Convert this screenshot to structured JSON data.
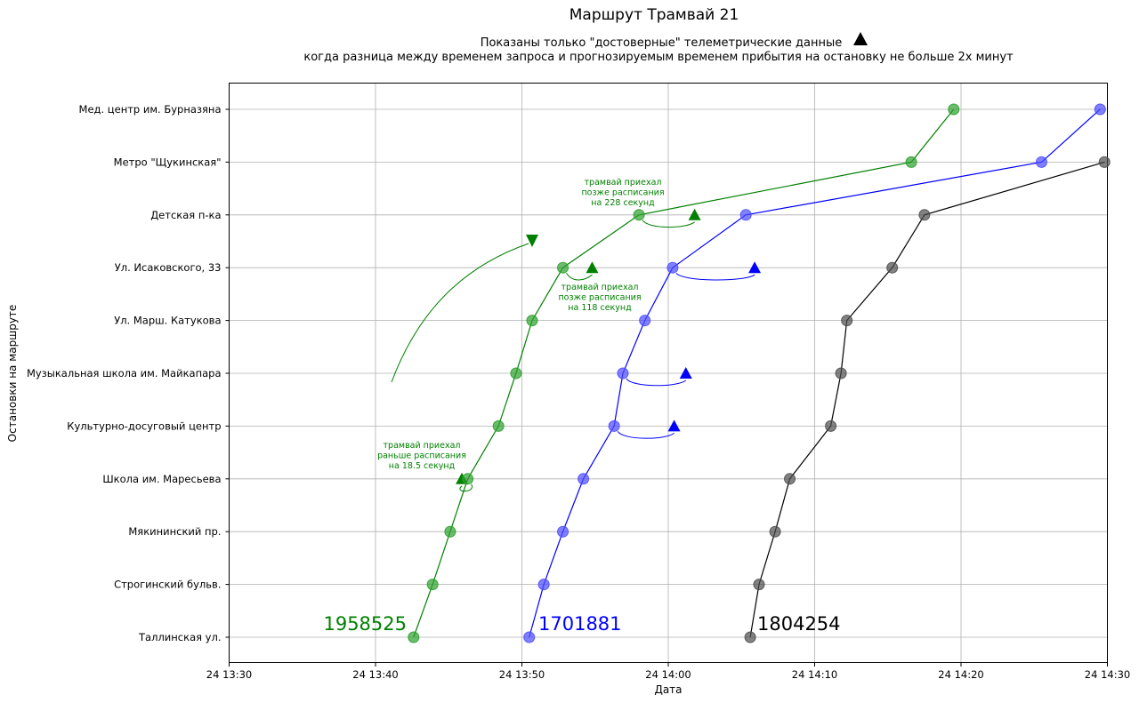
{
  "chart_data": {
    "type": "line",
    "title": "Маршрут Трамвай 21",
    "subtitle_lines": [
      "Показаны только \"достоверные\" телеметрические данные",
      "когда разница между временем запроса и прогнозируемым временем прибытия на остановку не больше 2х минут"
    ],
    "xlabel": "Дата",
    "ylabel": "Остановки на маршруте",
    "x_ticks": [
      "24 13:30",
      "24 13:40",
      "24 13:50",
      "24 14:00",
      "24 14:10",
      "24 14:20",
      "24 14:30"
    ],
    "xlim_minutes": [
      0,
      60
    ],
    "stops": [
      "Таллинская ул.",
      "Строгинский бульв.",
      "Мякининский пр.",
      "Школа им. Маресьева",
      "Культурно-досуговый центр",
      "Музыкальная школа им. Майкапара",
      "Ул. Марш. Катукова",
      "Ул. Исаковского, 33",
      "Детская п-ка",
      "Метро \"Щукинская\"",
      "Мед. центр им. Бурназяна"
    ],
    "grid": true,
    "series": [
      {
        "name": "1958525",
        "color": "#008000",
        "marker_color": "#2ca02c",
        "x_minutes": [
          12.6,
          13.9,
          15.1,
          16.3,
          18.4,
          19.6,
          20.7,
          22.8,
          28.0,
          46.6,
          49.5
        ],
        "predictions": [
          {
            "stop": 3,
            "x_minutes": 15.9
          },
          {
            "stop": 7,
            "x_minutes": 24.8
          },
          {
            "stop": 8,
            "x_minutes": 31.8
          }
        ]
      },
      {
        "name": "1701881",
        "color": "#0000ff",
        "marker_color": "#4c4cff",
        "x_minutes": [
          20.5,
          21.5,
          22.8,
          24.2,
          26.3,
          26.9,
          28.4,
          30.3,
          35.3,
          55.5,
          59.5
        ],
        "predictions": [
          {
            "stop": 4,
            "x_minutes": 30.4
          },
          {
            "stop": 5,
            "x_minutes": 31.2
          },
          {
            "stop": 7,
            "x_minutes": 35.9
          }
        ]
      },
      {
        "name": "1804254",
        "color": "#000000",
        "marker_color": "#4d4d4d",
        "x_minutes": [
          35.6,
          36.2,
          37.3,
          38.3,
          41.1,
          41.8,
          42.2,
          45.3,
          47.5,
          59.8
        ],
        "predictions": []
      }
    ],
    "annotations": [
      {
        "text_lines": [
          "трамвай приехал",
          "раньше расписания",
          "на 18.5 секунд"
        ],
        "color": "#008000"
      },
      {
        "text_lines": [
          "трамвай приехал",
          "позже расписания",
          "на 118 секунд"
        ],
        "color": "#008000"
      },
      {
        "text_lines": [
          "трамвай приехал",
          "позже расписания",
          "на 228 секунд"
        ],
        "color": "#008000"
      }
    ],
    "extra_marker": {
      "shape": "triangle-down",
      "color": "#008000",
      "x_minutes": 20.7
    }
  }
}
